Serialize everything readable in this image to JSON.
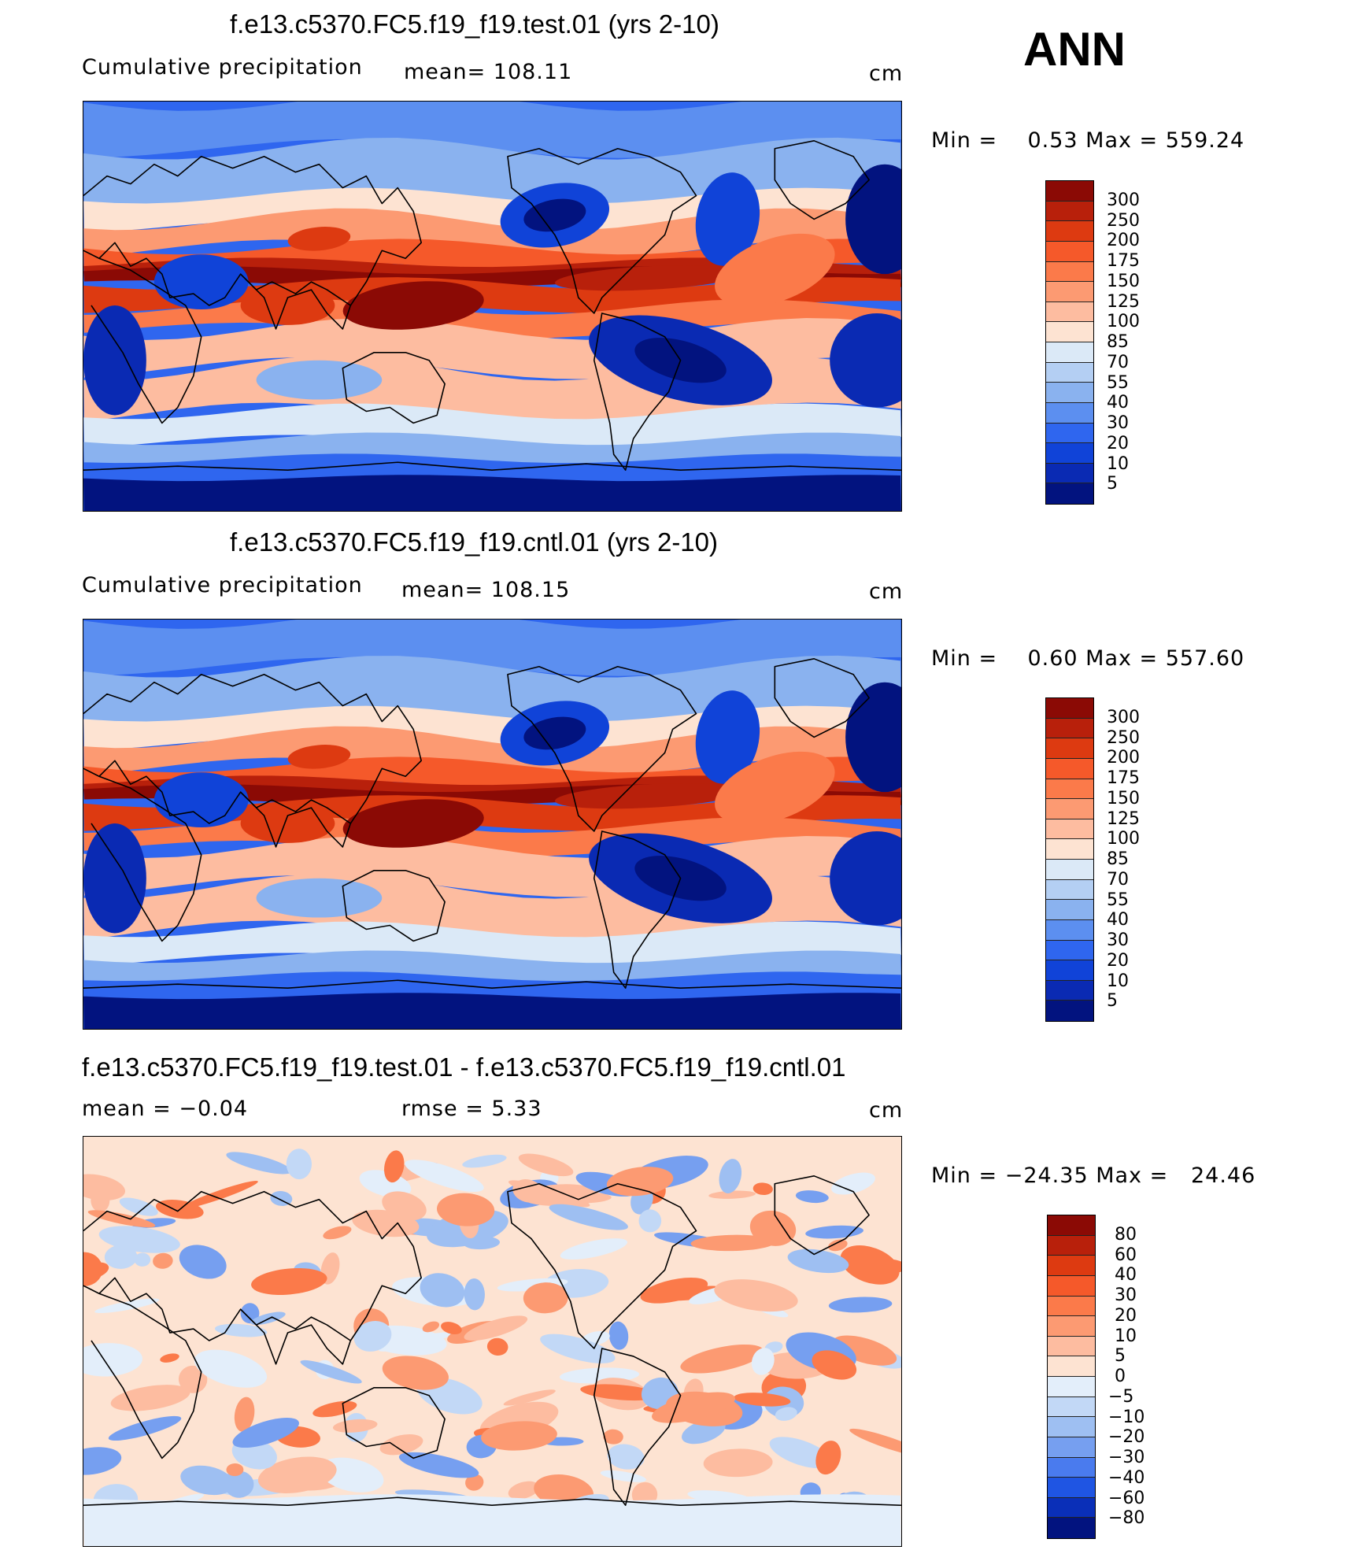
{
  "annotation": "ANN",
  "units": "cm",
  "panels": [
    {
      "title": "f.e13.c5370.FC5.f19_f19.test.01 (yrs 2-10)",
      "subtitle_left": "Cumulative precipitation",
      "subtitle_mid": "mean= 108.11",
      "units": "cm",
      "minmax": "Min =    0.53 Max = 559.24",
      "scale": "abs"
    },
    {
      "title": "f.e13.c5370.FC5.f19_f19.cntl.01 (yrs 2-10)",
      "subtitle_left": "Cumulative precipitation",
      "subtitle_mid": "mean= 108.15",
      "units": "cm",
      "minmax": "Min =    0.60 Max = 557.60",
      "scale": "abs"
    },
    {
      "title": "f.e13.c5370.FC5.f19_f19.test.01 - f.e13.c5370.FC5.f19_f19.cntl.01",
      "subtitle_left": "mean =   −0.04",
      "subtitle_mid": "rmse =    5.33",
      "units": "cm",
      "minmax": "Min = −24.35 Max =   24.46",
      "scale": "diff"
    }
  ],
  "colorbars": {
    "abs": {
      "labels": [
        "300",
        "250",
        "200",
        "175",
        "150",
        "125",
        "100",
        "85",
        "70",
        "55",
        "40",
        "30",
        "20",
        "10",
        "5"
      ],
      "colors": [
        "#8b0a05",
        "#b8200b",
        "#dd3a11",
        "#f5592a",
        "#fb7a4a",
        "#fc9a72",
        "#fdbca0",
        "#fde3d2",
        "#dbe9f7",
        "#b4cff3",
        "#8ab2ef",
        "#5c8ff0",
        "#2f66ef",
        "#1043d8",
        "#0a2ab3",
        "#02137f"
      ]
    },
    "diff": {
      "labels": [
        "80",
        "60",
        "40",
        "30",
        "20",
        "10",
        "5",
        "0",
        "−5",
        "−10",
        "−20",
        "−30",
        "−40",
        "−60",
        "−80"
      ],
      "colors": [
        "#8b0a05",
        "#b8200b",
        "#dd3a11",
        "#f5592a",
        "#fb7a4a",
        "#fc9a72",
        "#fdbca0",
        "#fde3d2",
        "#e3eefa",
        "#c2d8f6",
        "#9ebff2",
        "#769ff0",
        "#4a7bee",
        "#1f55e3",
        "#0a2fb8",
        "#02137f"
      ]
    }
  }
}
